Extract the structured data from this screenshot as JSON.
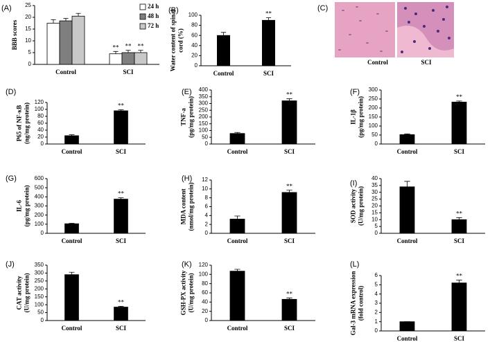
{
  "chart_data": [
    {
      "type": "bar",
      "panel": "(A)",
      "ylabel": [
        "BBB scores"
      ],
      "categories": [
        "Control",
        "SCI"
      ],
      "series": [
        {
          "name": "24 h",
          "color": "#ffffff",
          "values": [
            17.5,
            4.5
          ],
          "errors": [
            1.5,
            1
          ],
          "significance": [
            null,
            "**"
          ]
        },
        {
          "name": "48 h",
          "color": "#7f7f7f",
          "values": [
            18.5,
            5
          ],
          "errors": [
            1,
            1
          ],
          "significance": [
            null,
            "**"
          ]
        },
        {
          "name": "72 h",
          "color": "#c8c8c8",
          "values": [
            20.5,
            5
          ],
          "errors": [
            1.2,
            1
          ],
          "significance": [
            null,
            "**"
          ]
        }
      ],
      "ylim": [
        0,
        25
      ],
      "yticks": [
        0,
        5,
        10,
        15,
        20,
        25
      ],
      "legend": "upper right"
    },
    {
      "type": "bar",
      "panel": "(B)",
      "ylabel": [
        "Water content of  spinal",
        "cord  (%)"
      ],
      "categories": [
        "Control",
        "SCI"
      ],
      "values": [
        60,
        90
      ],
      "errors": [
        6,
        5
      ],
      "significance": [
        null,
        "**"
      ],
      "color": "#000000",
      "ylim": [
        0,
        100
      ],
      "yticks": [
        0,
        20,
        40,
        60,
        80,
        100
      ]
    },
    {
      "type": "bar",
      "panel": "(D)",
      "ylabel": [
        "P65 of NF-κB",
        "(ng/mg protein)"
      ],
      "categories": [
        "Control",
        "SCI"
      ],
      "values": [
        24,
        96
      ],
      "errors": [
        3,
        3
      ],
      "significance": [
        null,
        "**"
      ],
      "color": "#000000",
      "ylim": [
        0,
        120
      ],
      "yticks": [
        0,
        20,
        40,
        60,
        80,
        100,
        120
      ]
    },
    {
      "type": "bar",
      "panel": "(E)",
      "ylabel": [
        "TNF-a",
        "(pg/mg protein)"
      ],
      "categories": [
        "Control",
        "SCI"
      ],
      "values": [
        78,
        320
      ],
      "errors": [
        8,
        15
      ],
      "significance": [
        null,
        "**"
      ],
      "color": "#000000",
      "ylim": [
        0,
        400
      ],
      "yticks": [
        0,
        50,
        100,
        150,
        200,
        250,
        300,
        350,
        400
      ]
    },
    {
      "type": "bar",
      "panel": "(F)",
      "ylabel": [
        "IL-1β",
        "(pg/mg protein)"
      ],
      "categories": [
        "Control",
        "SCI"
      ],
      "values": [
        52,
        233
      ],
      "errors": [
        4,
        6
      ],
      "significance": [
        null,
        "**"
      ],
      "color": "#000000",
      "ylim": [
        0,
        300
      ],
      "yticks": [
        0,
        50,
        100,
        150,
        200,
        250,
        300
      ]
    },
    {
      "type": "bar",
      "panel": "(G)",
      "ylabel": [
        "IL-6",
        "(pg/mg protein)"
      ],
      "categories": [
        "Control",
        "SCI"
      ],
      "values": [
        105,
        375
      ],
      "errors": [
        5,
        15
      ],
      "significance": [
        null,
        "**"
      ],
      "color": "#000000",
      "ylim": [
        0,
        600
      ],
      "yticks": [
        0,
        100,
        200,
        300,
        400,
        500,
        600
      ]
    },
    {
      "type": "bar",
      "panel": "(H)",
      "ylabel": [
        "MDA content",
        "(nmol/mg protein)"
      ],
      "categories": [
        "Control",
        "SCI"
      ],
      "values": [
        3.2,
        9.2
      ],
      "errors": [
        0.7,
        0.5
      ],
      "significance": [
        null,
        "**"
      ],
      "color": "#000000",
      "ylim": [
        0,
        12
      ],
      "yticks": [
        0,
        2,
        4,
        6,
        8,
        10,
        12
      ]
    },
    {
      "type": "bar",
      "panel": "(I)",
      "ylabel": [
        "SOD activity",
        "(U/mg protein)"
      ],
      "categories": [
        "Control",
        "SCI"
      ],
      "values": [
        34,
        10
      ],
      "errors": [
        4,
        1.5
      ],
      "significance": [
        null,
        "**"
      ],
      "color": "#000000",
      "ylim": [
        0,
        40
      ],
      "yticks": [
        0,
        5,
        10,
        15,
        20,
        25,
        30,
        35,
        40
      ]
    },
    {
      "type": "bar",
      "panel": "(J)",
      "ylabel": [
        "CAT activity",
        "(U/mg protein)"
      ],
      "categories": [
        "Control",
        "SCI"
      ],
      "values": [
        290,
        85
      ],
      "errors": [
        15,
        5
      ],
      "significance": [
        null,
        "**"
      ],
      "color": "#000000",
      "ylim": [
        0,
        350
      ],
      "yticks": [
        0,
        50,
        100,
        150,
        200,
        250,
        300,
        350
      ]
    },
    {
      "type": "bar",
      "panel": "(K)",
      "ylabel": [
        "GSH-PX activity",
        "(U/mg protein)"
      ],
      "categories": [
        "Control",
        "SCI"
      ],
      "values": [
        107,
        46
      ],
      "errors": [
        4,
        3
      ],
      "significance": [
        null,
        "**"
      ],
      "color": "#000000",
      "ylim": [
        0,
        120
      ],
      "yticks": [
        0,
        20,
        40,
        60,
        80,
        100,
        120
      ]
    },
    {
      "type": "bar",
      "panel": "(L)",
      "ylabel": [
        "Gal-3 mRNA expression",
        "(fold control)"
      ],
      "categories": [
        "Control",
        "SCI"
      ],
      "values": [
        1,
        5.2
      ],
      "errors": [
        0,
        0.3
      ],
      "significance": [
        null,
        "**"
      ],
      "color": "#000000",
      "ylim": [
        0,
        6
      ],
      "yticks": [
        0,
        1,
        2,
        3,
        4,
        5,
        6
      ]
    }
  ],
  "images": {
    "panel": "(C)",
    "labels": [
      "Control",
      "SCI"
    ]
  }
}
